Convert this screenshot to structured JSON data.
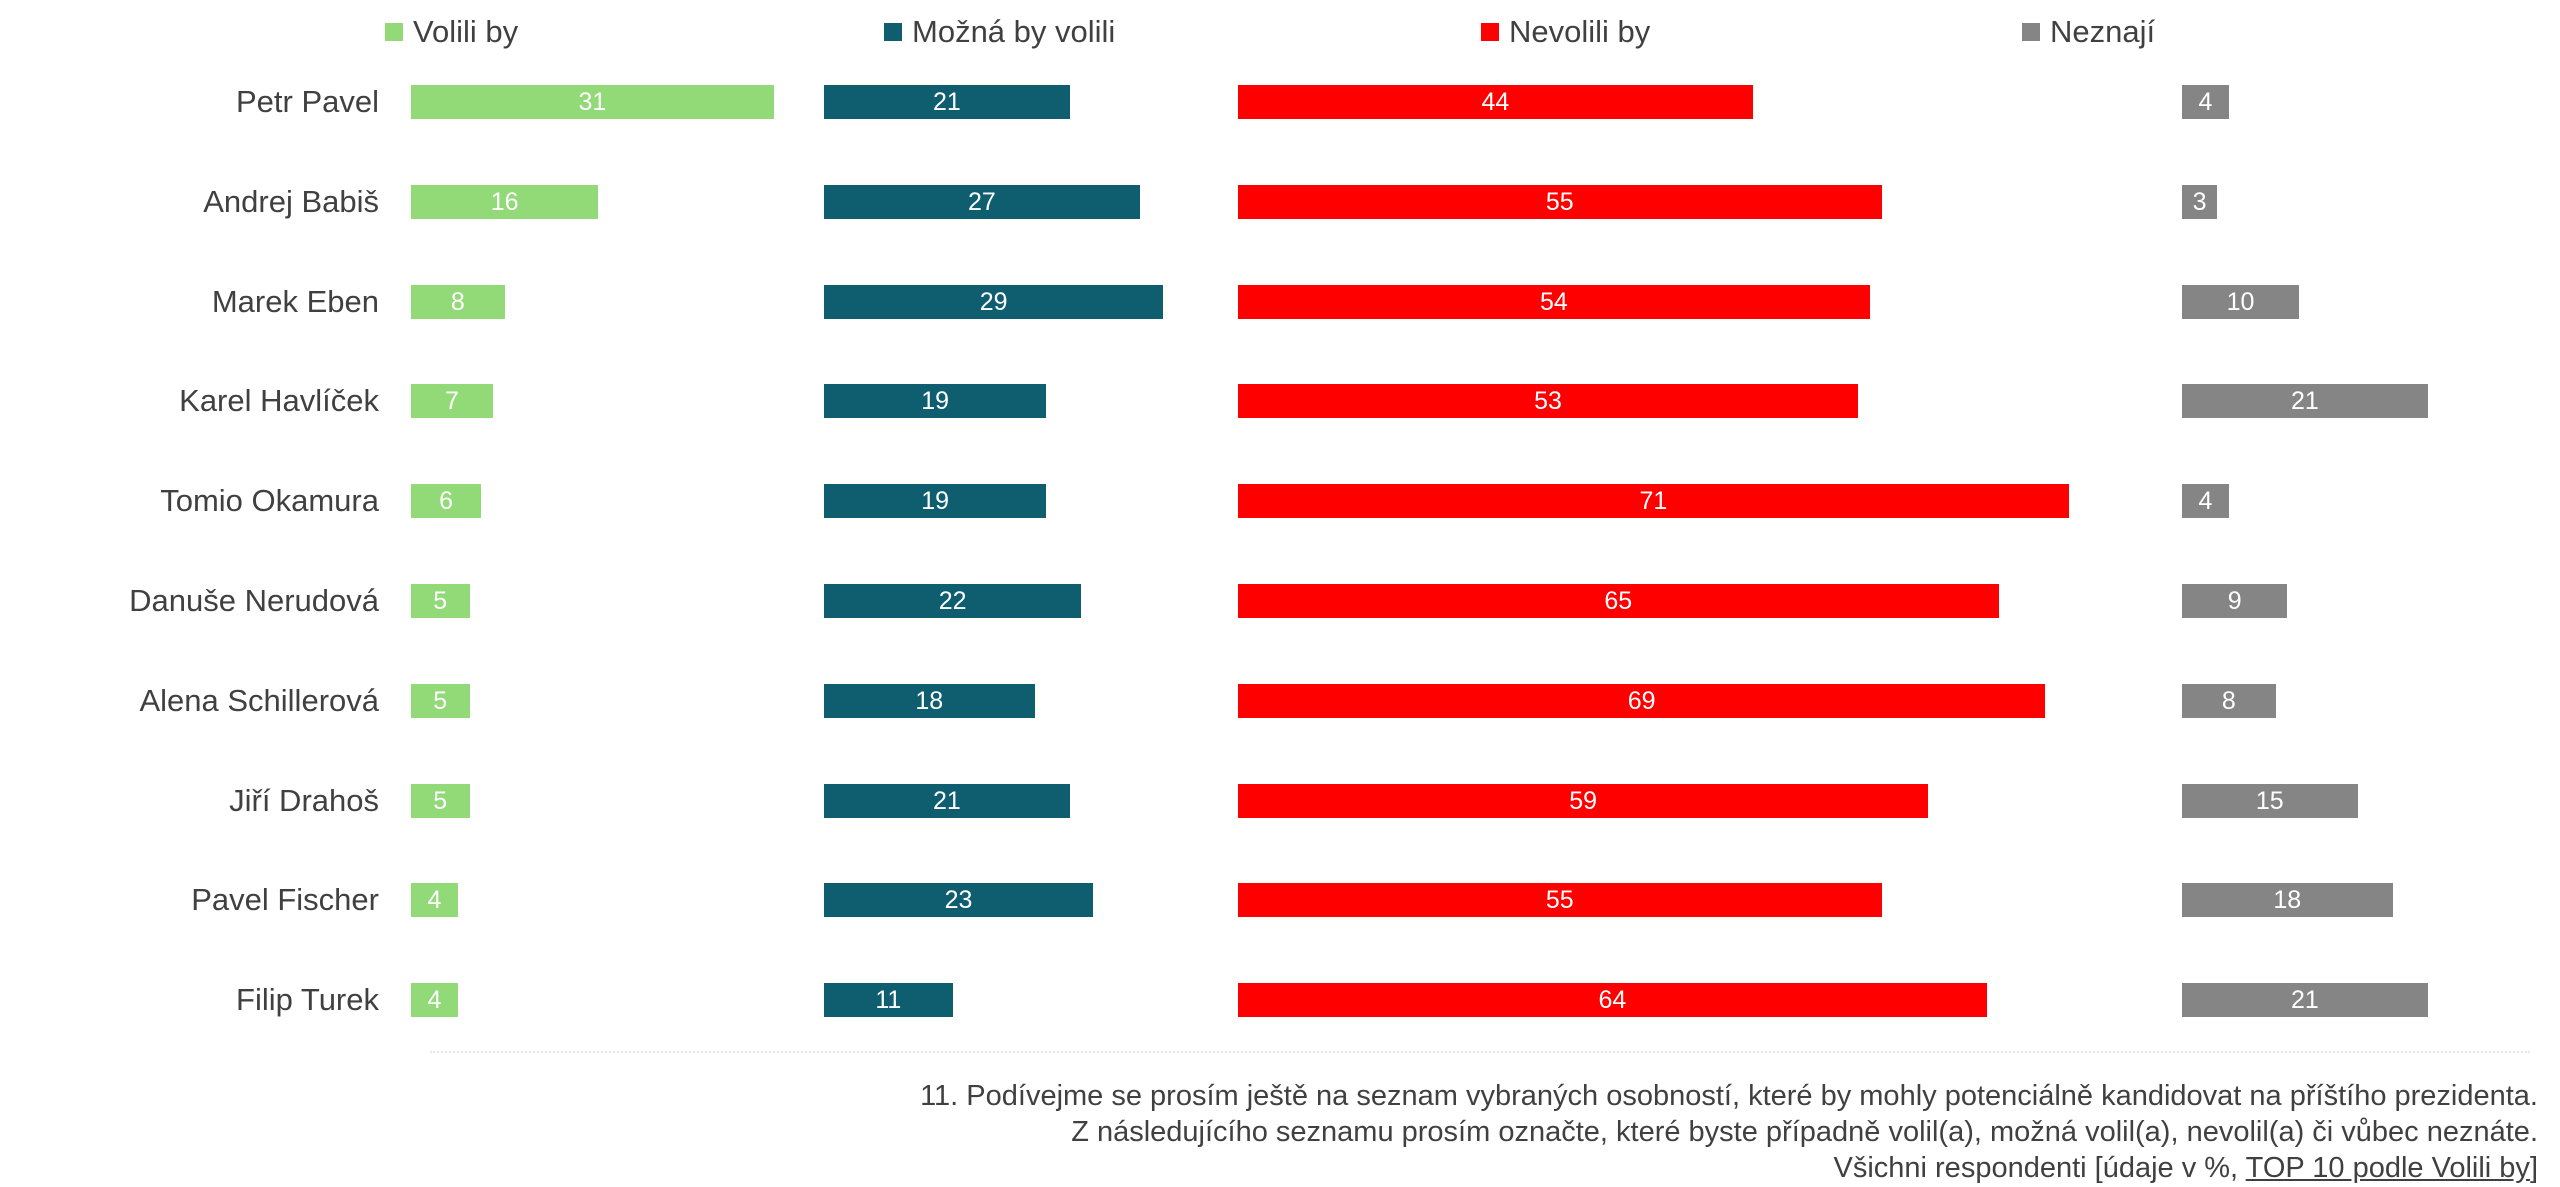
{
  "chart_data": {
    "type": "bar",
    "orientation": "horizontal",
    "layout": "small-multiples",
    "categories": [
      "Petr Pavel",
      "Andrej Babiš",
      "Marek Eben",
      "Karel Havlíček",
      "Tomio Okamura",
      "Danuše Nerudová",
      "Alena Schillerová",
      "Jiří Drahoš",
      "Pavel Fischer",
      "Filip Turek"
    ],
    "series": [
      {
        "name": "Volili by",
        "color": "#92D977",
        "values": [
          31,
          16,
          8,
          7,
          6,
          5,
          5,
          5,
          4,
          4
        ]
      },
      {
        "name": "Možná by volili",
        "color": "#0E5E6F",
        "values": [
          21,
          27,
          29,
          19,
          19,
          22,
          18,
          21,
          23,
          11
        ]
      },
      {
        "name": "Nevolili by",
        "color": "#FF0000",
        "values": [
          44,
          55,
          54,
          53,
          71,
          65,
          69,
          59,
          55,
          64
        ]
      },
      {
        "name": "Neznají",
        "color": "#858585",
        "values": [
          4,
          3,
          10,
          21,
          4,
          9,
          8,
          15,
          18,
          21
        ]
      }
    ],
    "legend_position": "top",
    "grid": false,
    "data_labels": true
  },
  "footnote": {
    "line1": "11. Podívejme se prosím ještě na seznam vybraných osobností, které by mohly potenciálně kandidovat na příštího prezidenta.",
    "line2": "Z následujícího seznamu prosím označte, které byste případně volil(a), možná volil(a), nevolil(a) či vůbec neznáte.",
    "line3_prefix": "Všichni respondenti [údaje v %, ",
    "line3_underlined": "TOP 10 podle Volili by",
    "line3_suffix": "]"
  }
}
